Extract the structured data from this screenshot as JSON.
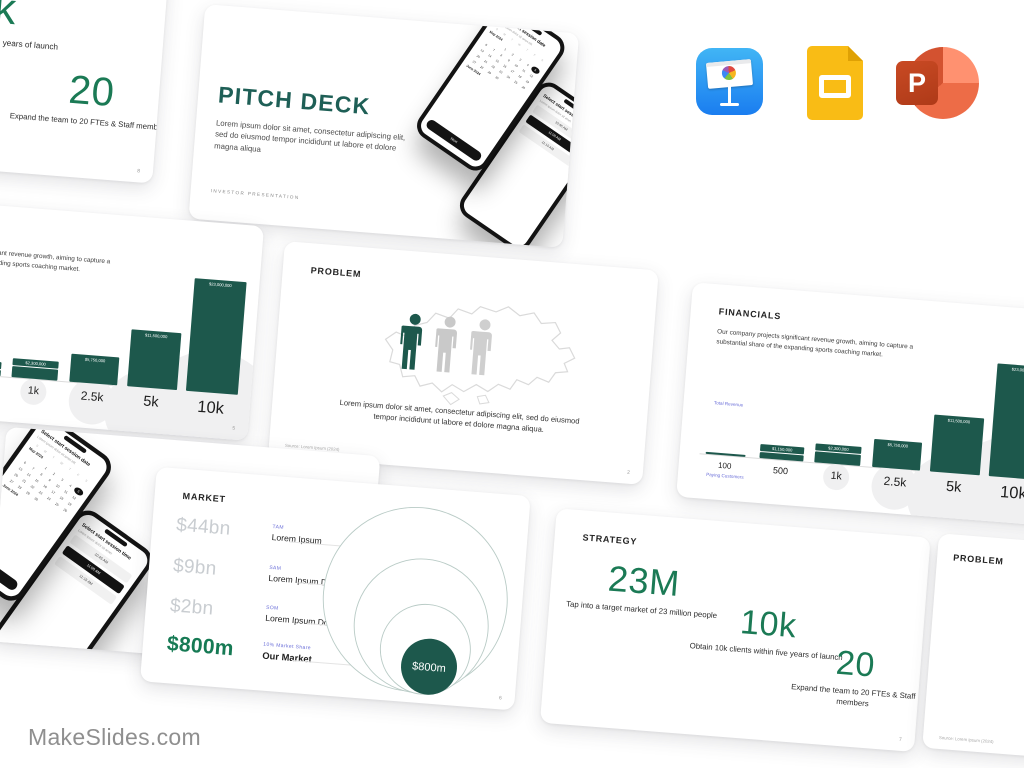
{
  "site": {
    "label": "MakeSlides.com"
  },
  "app_icons": [
    {
      "name": "Keynote"
    },
    {
      "name": "Google Slides"
    },
    {
      "name": "PowerPoint",
      "letter": "P"
    }
  ],
  "colors": {
    "accent_teal": "#1D584C",
    "accent_green": "#1B7A55",
    "title_teal": "#1E5F56",
    "tag_purple": "#6B6FD8",
    "muted_gray": "#c9cdd1"
  },
  "slides": {
    "cover": {
      "title": "PITCH DECK",
      "body": "Lorem ipsum dolor sit amet, consectetur adipiscing elit, sed do eiusmod tempor incididunt ut labore et dolore magna aliqua",
      "footer": "INVESTOR  PRESENTATION"
    },
    "phone_calendar": {
      "title": "Select start session date",
      "subtitle": "Lorem ipsum dolor sit amet elit",
      "weekdays": [
        "S",
        "M",
        "T",
        "W",
        "T",
        "F",
        "S"
      ],
      "month_top": "May 2024",
      "month_bottom": "June 2024",
      "days": 30,
      "start_offset": 2,
      "selected_day": 5,
      "button": "Next"
    },
    "phone_time": {
      "title": "Select start session time",
      "subtitle": "Lorem ipsum dolor sit amet",
      "options": [
        {
          "label": "10:45 AM",
          "selected": false
        },
        {
          "label": "11:00 AM",
          "selected": true
        },
        {
          "label": "11:15 AM",
          "selected": false
        }
      ]
    },
    "problem": {
      "title": "PROBLEM",
      "caption": "Lorem ipsum dolor sit amet, consectetur adipiscing elit, sed do eiusmod tempor incididunt ut labore et dolore magna aliqua.",
      "source": "Source: Lorem Ipsum (2024)",
      "page": "2"
    },
    "financials": {
      "title": "FINANCIALS",
      "body": "Our company projects significant revenue growth, aiming to capture a substantial share of the expanding sports coaching market.",
      "y_axis": "Total Revenue",
      "x_axis": "Paying Customers",
      "page": "5"
    },
    "market": {
      "title": "MARKET",
      "rows": [
        {
          "amount": "$44bn",
          "tag": "TAM",
          "label": "Lorem Ipsum",
          "highlight": false
        },
        {
          "amount": "$9bn",
          "tag": "SAM",
          "label": "Lorem Ipsum Dolor",
          "highlight": false
        },
        {
          "amount": "$2bn",
          "tag": "SOM",
          "label": "Lorem Ipsum Dolor Sit",
          "highlight": false
        },
        {
          "amount": "$800m",
          "tag": "10% Market Share",
          "label": "Our Market",
          "highlight": true
        }
      ],
      "bubble": "$800m",
      "page": "6"
    },
    "strategy": {
      "title": "STRATEGY",
      "stats": [
        {
          "value": "23M",
          "caption": "Tap into a target market of 23 million people"
        },
        {
          "value": "10k",
          "caption": "Obtain 10k clients within five years of launch"
        },
        {
          "value": "20",
          "caption": "Expand the team to 20 FTEs & Staff members"
        }
      ],
      "page": "7",
      "fragment_page": "8"
    }
  },
  "chart_data": {
    "type": "bar",
    "title": "FINANCIALS",
    "xlabel": "Paying Customers",
    "ylabel": "Total Revenue",
    "categories": [
      "100",
      "500",
      "1k",
      "2.5k",
      "5k",
      "10k"
    ],
    "values": [
      230000,
      1150000,
      2300000,
      5750000,
      11500000,
      23000000
    ],
    "value_labels": [
      "",
      "$1,150,000",
      "$2,300,000",
      "$5,750,000",
      "$11,500,000",
      "$23,000,000"
    ],
    "ylim": [
      0,
      23000000
    ],
    "grid": false,
    "legend": false
  }
}
